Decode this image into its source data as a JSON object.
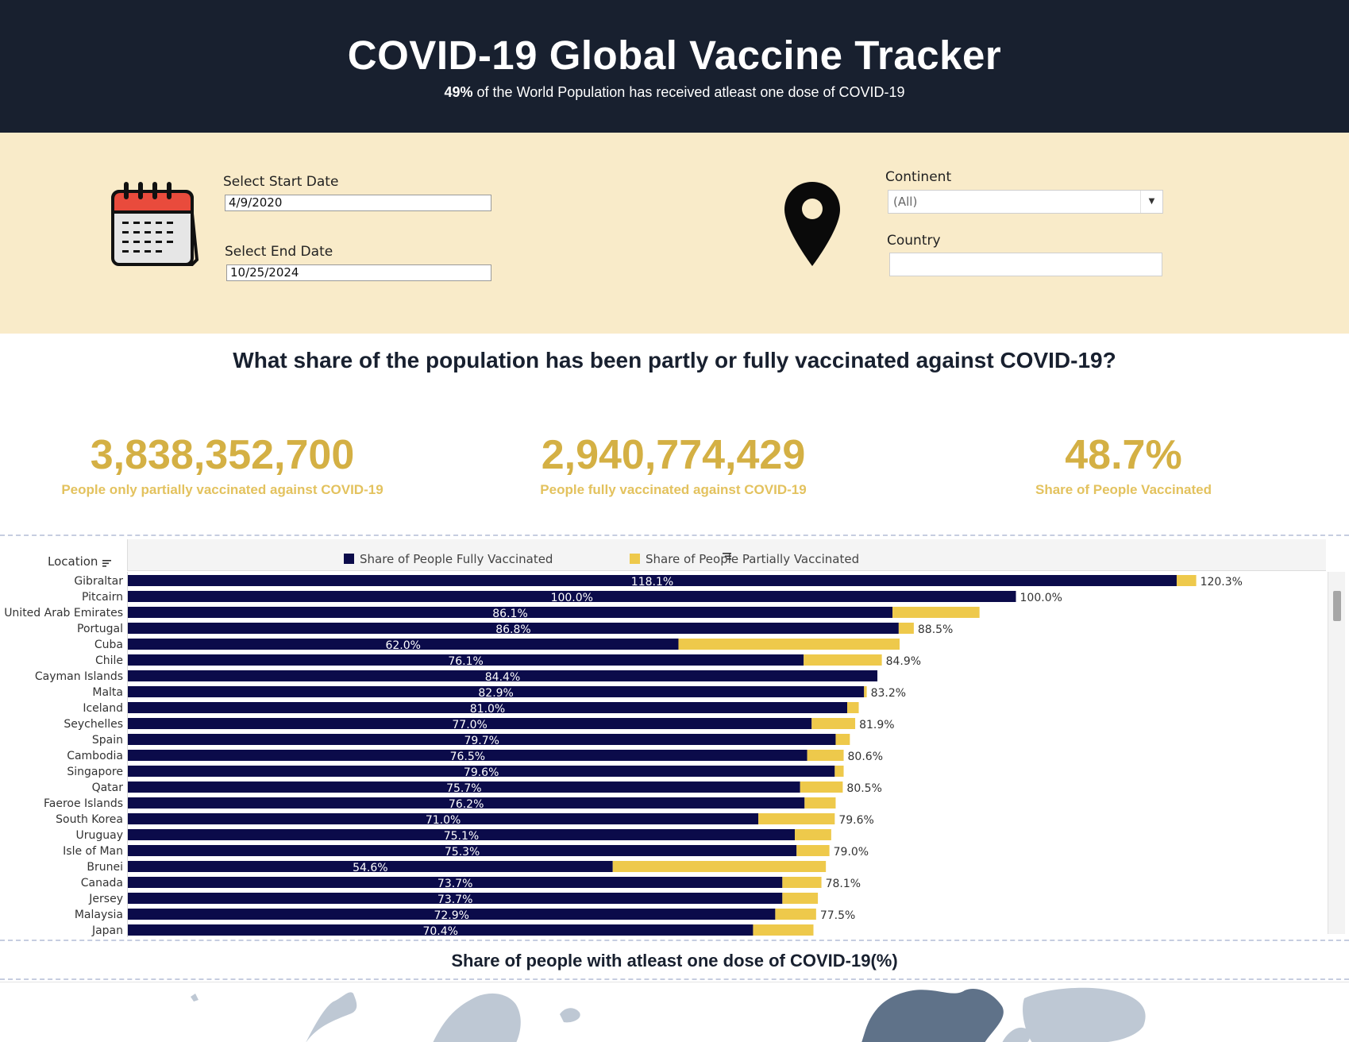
{
  "header": {
    "title": "COVID-19 Global Vaccine Tracker",
    "subtitle_pct": "49%",
    "subtitle_rest": "of the World Population has received atleast one dose of COVID-19"
  },
  "filters": {
    "start_date_label": "Select Start Date",
    "start_date_value": "4/9/2020",
    "end_date_label": "Select End Date",
    "end_date_value": "10/25/2024",
    "continent_label": "Continent",
    "continent_value": "(All)",
    "country_label": "Country",
    "country_value": ""
  },
  "question": "What share of the population has been partly or fully vaccinated against COVID-19?",
  "kpis": [
    {
      "value": "3,838,352,700",
      "label": "People only partially vaccinated against COVID-19"
    },
    {
      "value": "2,940,774,429",
      "label": "People fully vaccinated against COVID-19"
    },
    {
      "value": "48.7%",
      "label": "Share of People Vaccinated"
    }
  ],
  "colors": {
    "fully": "#0b0b4a",
    "partial": "#eec94b",
    "kpi": "#d4b044",
    "header_bg": "#18202f",
    "filter_bg": "#f9ebc9"
  },
  "chart_data": {
    "type": "bar",
    "orientation": "horizontal",
    "stacked": true,
    "location_header": "Location",
    "series": [
      {
        "name": "Share of People Fully Vaccinated",
        "color": "#0b0b4a"
      },
      {
        "name": "Share of People Partially Vaccinated",
        "color": "#eec94b"
      }
    ],
    "rows": [
      {
        "location": "Gibraltar",
        "fully": 118.1,
        "partial": 2.2,
        "total_label": "120.3%"
      },
      {
        "location": "Pitcairn",
        "fully": 100.0,
        "partial": 0.0,
        "total_label": "100.0%"
      },
      {
        "location": "United Arab Emirates",
        "fully": 86.1,
        "partial": 9.8,
        "total_label": ""
      },
      {
        "location": "Portugal",
        "fully": 86.8,
        "partial": 1.7,
        "total_label": "88.5%"
      },
      {
        "location": "Cuba",
        "fully": 62.0,
        "partial": 24.9,
        "total_label": ""
      },
      {
        "location": "Chile",
        "fully": 76.1,
        "partial": 8.8,
        "total_label": "84.9%"
      },
      {
        "location": "Cayman Islands",
        "fully": 84.4,
        "partial": 0.0,
        "total_label": ""
      },
      {
        "location": "Malta",
        "fully": 82.9,
        "partial": 0.3,
        "total_label": "83.2%"
      },
      {
        "location": "Iceland",
        "fully": 81.0,
        "partial": 1.3,
        "total_label": ""
      },
      {
        "location": "Seychelles",
        "fully": 77.0,
        "partial": 4.9,
        "total_label": "81.9%"
      },
      {
        "location": "Spain",
        "fully": 79.7,
        "partial": 1.6,
        "total_label": ""
      },
      {
        "location": "Cambodia",
        "fully": 76.5,
        "partial": 4.1,
        "total_label": "80.6%"
      },
      {
        "location": "Singapore",
        "fully": 79.6,
        "partial": 1.0,
        "total_label": ""
      },
      {
        "location": "Qatar",
        "fully": 75.7,
        "partial": 4.8,
        "total_label": "80.5%"
      },
      {
        "location": "Faeroe Islands",
        "fully": 76.2,
        "partial": 3.5,
        "total_label": ""
      },
      {
        "location": "South Korea",
        "fully": 71.0,
        "partial": 8.6,
        "total_label": "79.6%"
      },
      {
        "location": "Uruguay",
        "fully": 75.1,
        "partial": 4.1,
        "total_label": ""
      },
      {
        "location": "Isle of Man",
        "fully": 75.3,
        "partial": 3.7,
        "total_label": "79.0%"
      },
      {
        "location": "Brunei",
        "fully": 54.6,
        "partial": 24.0,
        "total_label": ""
      },
      {
        "location": "Canada",
        "fully": 73.7,
        "partial": 4.4,
        "total_label": "78.1%"
      },
      {
        "location": "Jersey",
        "fully": 73.7,
        "partial": 4.0,
        "total_label": ""
      },
      {
        "location": "Malaysia",
        "fully": 72.9,
        "partial": 4.6,
        "total_label": "77.5%"
      },
      {
        "location": "Japan",
        "fully": 70.4,
        "partial": 6.8,
        "total_label": ""
      }
    ],
    "x_range": [
      0,
      135
    ]
  },
  "map": {
    "title": "Share of people with atleast one dose of COVID-19(%)"
  }
}
